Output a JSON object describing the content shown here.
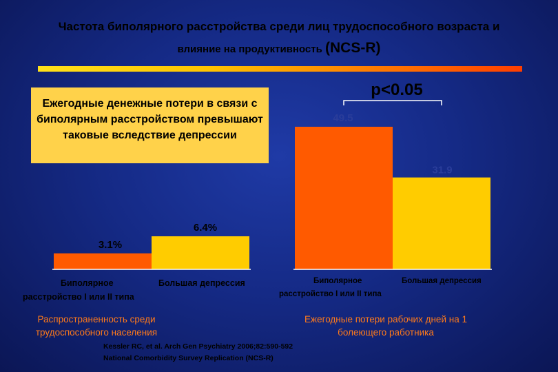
{
  "header": {
    "title_line1": "Частота биполярного расстройства среди лиц трудоспособного возраста и",
    "title_line2_text": "влияние на продуктивность ",
    "title_line2_big": "(NCS-R)"
  },
  "callout": {
    "text": "Ежегодные денежные потери в связи с биполярным расстройством превышают таковые вследствие депрессии"
  },
  "colors": {
    "bipolar": "#ff5a00",
    "depression": "#ffcc00",
    "axis": "#ffffff"
  },
  "chart_data": [
    {
      "type": "bar",
      "categories": [
        "Биполярное расстройство I или II типа",
        "Большая депрессия"
      ],
      "values": [
        3.1,
        6.4
      ],
      "value_labels": [
        "3.1%",
        "6.4%"
      ],
      "title": "Распространенность среди трудоспособного населения",
      "ylim": [
        0,
        40
      ]
    },
    {
      "type": "bar",
      "categories": [
        "Биполярное расстройство I или II типа",
        "Большая депрессия"
      ],
      "values": [
        49.5,
        31.9
      ],
      "value_labels": [
        "49.5",
        "31.9"
      ],
      "annotation": "p<0.05",
      "title": "Ежегодные потери рабочих дней на 1 болеющего работника",
      "ylim": [
        0,
        66
      ]
    }
  ],
  "labels": {
    "left_cat1_line1": "Биполярное",
    "left_cat1_line2": "расстройство I или II типа",
    "left_cat2": "Большая депрессия",
    "right_cat1_line1": "Биполярное",
    "right_cat1_line2": "расстройство I или II типа",
    "right_cat2": "Большая депрессия"
  },
  "captions": {
    "left_line1": "Распространенность  среди",
    "left_line2": "трудоспособного населения",
    "right_line1": "Ежегодные потери рабочих дней на 1",
    "right_line2": "болеющего работника"
  },
  "citation": {
    "line1": "Kessler RC, et al. Arch Gen Psychiatry 2006;82:590-592",
    "line2": "National Comorbidity Survey Replication (NCS-R)"
  }
}
